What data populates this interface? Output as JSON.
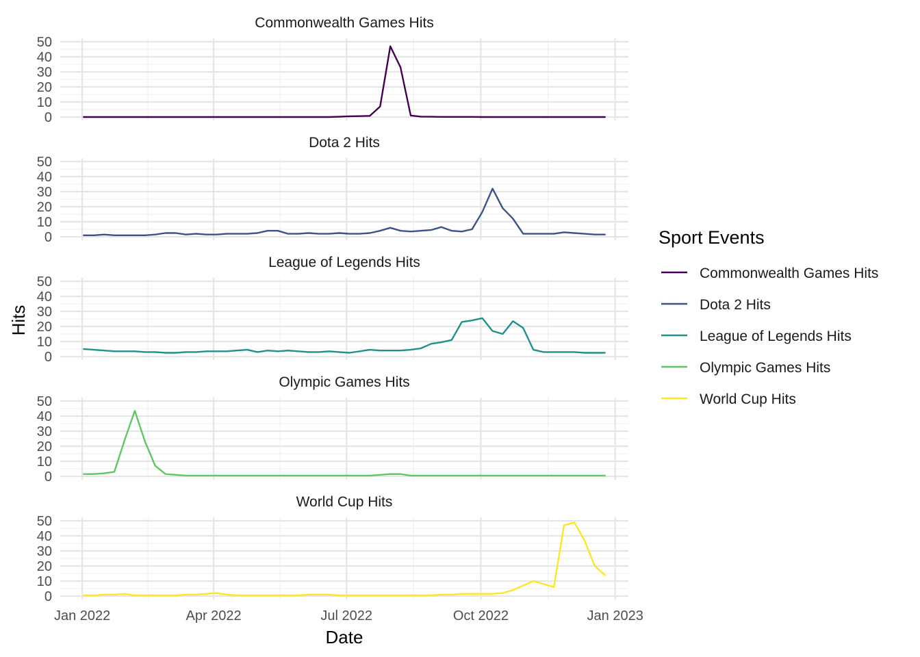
{
  "chart_data": {
    "type": "line",
    "facet": "rows",
    "xlabel": "Date",
    "ylabel": "Hits",
    "xlim": [
      "2022-01-02",
      "2022-12-25"
    ],
    "ylim": [
      0,
      50
    ],
    "x_ticks": [
      {
        "date": "2022-01-01",
        "label": "Jan 2022"
      },
      {
        "date": "2022-04-01",
        "label": "Apr 2022"
      },
      {
        "date": "2022-07-01",
        "label": "Jul 2022"
      },
      {
        "date": "2022-10-01",
        "label": "Oct 2022"
      },
      {
        "date": "2023-01-01",
        "label": "Jan 2023"
      }
    ],
    "y_ticks": [
      0,
      10,
      20,
      30,
      40,
      50
    ],
    "grid": true,
    "legend": {
      "title": "Sport Events",
      "position": "right"
    },
    "x": [
      "2022-01-02",
      "2022-01-09",
      "2022-01-16",
      "2022-01-23",
      "2022-01-30",
      "2022-02-06",
      "2022-02-13",
      "2022-02-20",
      "2022-02-27",
      "2022-03-06",
      "2022-03-13",
      "2022-03-20",
      "2022-03-27",
      "2022-04-03",
      "2022-04-10",
      "2022-04-17",
      "2022-04-24",
      "2022-05-01",
      "2022-05-08",
      "2022-05-15",
      "2022-05-22",
      "2022-05-29",
      "2022-06-05",
      "2022-06-12",
      "2022-06-19",
      "2022-06-26",
      "2022-07-03",
      "2022-07-10",
      "2022-07-17",
      "2022-07-24",
      "2022-07-31",
      "2022-08-07",
      "2022-08-14",
      "2022-08-21",
      "2022-08-28",
      "2022-09-04",
      "2022-09-11",
      "2022-09-18",
      "2022-09-25",
      "2022-10-02",
      "2022-10-09",
      "2022-10-16",
      "2022-10-23",
      "2022-10-30",
      "2022-11-06",
      "2022-11-13",
      "2022-11-20",
      "2022-11-27",
      "2022-12-04",
      "2022-12-11",
      "2022-12-18",
      "2022-12-25"
    ],
    "series": [
      {
        "name": "Commonwealth Games Hits",
        "color": "#440154",
        "values": [
          0,
          0,
          0,
          0,
          0,
          0,
          0,
          0,
          0,
          0,
          0,
          0,
          0,
          0,
          0,
          0,
          0,
          0,
          0,
          0,
          0,
          0,
          0,
          0,
          0,
          0.2,
          0.5,
          0.6,
          0.8,
          7,
          47,
          33,
          1,
          0.3,
          0.2,
          0.1,
          0.1,
          0.1,
          0.1,
          0,
          0,
          0,
          0,
          0,
          0,
          0,
          0,
          0,
          0,
          0,
          0,
          0
        ]
      },
      {
        "name": "Dota 2 Hits",
        "color": "#3B528B",
        "values": [
          1,
          1,
          1.5,
          1,
          1,
          1,
          1,
          1.5,
          2.5,
          2.5,
          1.5,
          2,
          1.5,
          1.5,
          2,
          2,
          2,
          2.5,
          4,
          4,
          2,
          2,
          2.5,
          2,
          2,
          2.5,
          2,
          2,
          2.5,
          4,
          6,
          4,
          3.5,
          4,
          4.5,
          6.5,
          4,
          3.5,
          5,
          16.5,
          32,
          19,
          12,
          2,
          2,
          2,
          2,
          3,
          2.5,
          2,
          1.5,
          1.5
        ]
      },
      {
        "name": "League of Legends Hits",
        "color": "#21908C",
        "values": [
          5,
          4.5,
          4,
          3.5,
          3.5,
          3.5,
          3,
          3,
          2.5,
          2.5,
          3,
          3,
          3.5,
          3.5,
          3.5,
          4,
          4.5,
          3,
          4,
          3.5,
          4,
          3.5,
          3,
          3,
          3.5,
          3,
          2.5,
          3.5,
          4.5,
          4,
          4,
          4,
          4.5,
          5.5,
          8.5,
          9.5,
          11,
          23,
          24,
          25.5,
          17,
          15,
          23.5,
          19,
          4.5,
          3,
          3,
          3,
          3,
          2.5,
          2.5,
          2.5
        ]
      },
      {
        "name": "Olympic Games Hits",
        "color": "#5DC863",
        "values": [
          1.5,
          1.5,
          2,
          3,
          24,
          43.5,
          23,
          7,
          1.5,
          1,
          0.5,
          0.5,
          0.5,
          0.5,
          0.5,
          0.5,
          0.5,
          0.5,
          0.5,
          0.5,
          0.5,
          0.5,
          0.5,
          0.5,
          0.5,
          0.5,
          0.5,
          0.5,
          0.5,
          1,
          1.5,
          1.5,
          0.5,
          0.5,
          0.5,
          0.5,
          0.5,
          0.5,
          0.5,
          0.5,
          0.5,
          0.5,
          0.5,
          0.5,
          0.5,
          0.5,
          0.5,
          0.5,
          0.5,
          0.5,
          0.5,
          0.5
        ]
      },
      {
        "name": "World Cup Hits",
        "color": "#FDE725",
        "values": [
          0.5,
          0.5,
          1,
          1,
          1.5,
          0.5,
          0.5,
          0.5,
          0.5,
          0.5,
          1,
          1,
          1.5,
          2,
          1,
          0.5,
          0.5,
          0.5,
          0.5,
          0.5,
          0.5,
          0.5,
          1,
          1,
          1,
          0.5,
          0.5,
          0.5,
          0.5,
          0.5,
          0.5,
          0.5,
          0.5,
          0.5,
          0.5,
          1,
          1,
          1.5,
          1.5,
          1.5,
          1.5,
          2,
          4,
          7,
          10,
          8,
          6,
          47,
          49,
          37,
          20,
          14
        ]
      }
    ]
  }
}
